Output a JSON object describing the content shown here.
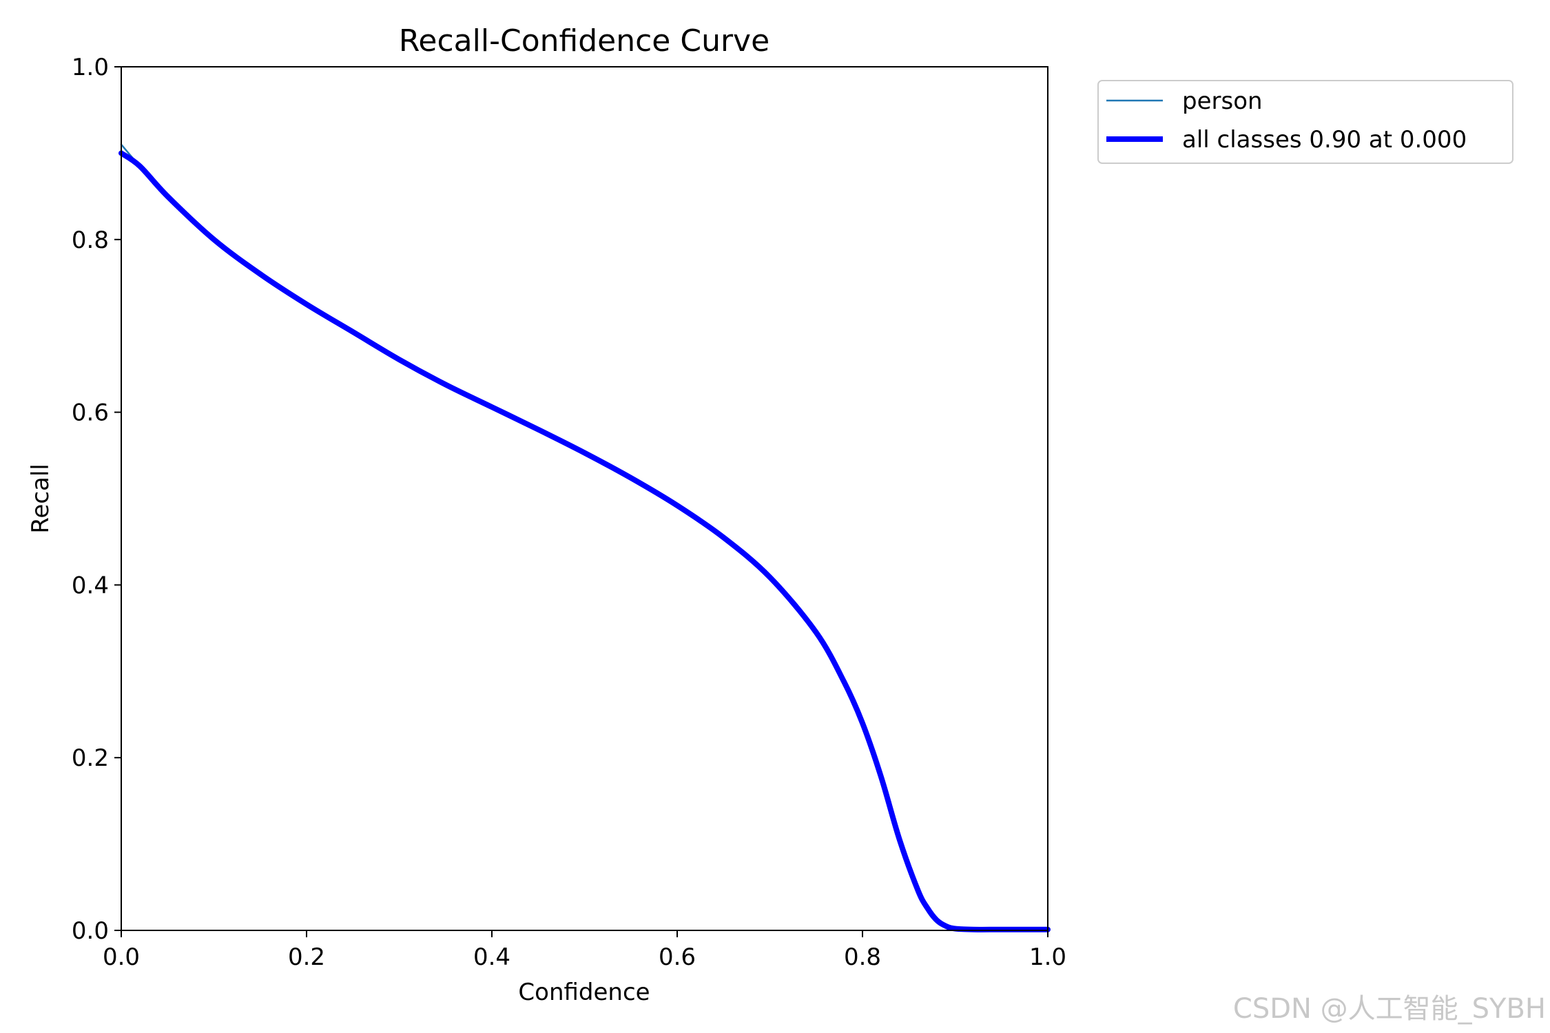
{
  "chart_data": {
    "type": "line",
    "title": "Recall-Confidence Curve",
    "xlabel": "Confidence",
    "ylabel": "Recall",
    "xlim": [
      0.0,
      1.0
    ],
    "ylim": [
      0.0,
      1.0
    ],
    "xticks": [
      "0.0",
      "0.2",
      "0.4",
      "0.6",
      "0.8",
      "1.0"
    ],
    "yticks": [
      "0.0",
      "0.2",
      "0.4",
      "0.6",
      "0.8",
      "1.0"
    ],
    "grid": false,
    "legend_position": "outside-top-right",
    "series": [
      {
        "name": "person",
        "color": "#1f77b4",
        "x": [
          0.0,
          0.02,
          0.05,
          0.1,
          0.15,
          0.2,
          0.25,
          0.3,
          0.35,
          0.4,
          0.45,
          0.5,
          0.55,
          0.6,
          0.65,
          0.7,
          0.75,
          0.78,
          0.8,
          0.82,
          0.84,
          0.86,
          0.87,
          0.88,
          0.89,
          0.9,
          0.92,
          0.95,
          1.0
        ],
        "y": [
          0.91,
          0.885,
          0.85,
          0.8,
          0.76,
          0.725,
          0.693,
          0.661,
          0.632,
          0.606,
          0.58,
          0.553,
          0.524,
          0.492,
          0.455,
          0.409,
          0.345,
          0.288,
          0.24,
          0.178,
          0.105,
          0.043,
          0.022,
          0.009,
          0.003,
          0.001,
          0.001,
          0.001,
          0.001
        ]
      },
      {
        "name": "all classes 0.90 at 0.000",
        "color": "#0000ff",
        "x": [
          0.0,
          0.02,
          0.05,
          0.1,
          0.15,
          0.2,
          0.25,
          0.3,
          0.35,
          0.4,
          0.45,
          0.5,
          0.55,
          0.6,
          0.65,
          0.7,
          0.75,
          0.78,
          0.8,
          0.82,
          0.84,
          0.86,
          0.87,
          0.88,
          0.89,
          0.9,
          0.92,
          0.95,
          1.0
        ],
        "y": [
          0.9,
          0.885,
          0.85,
          0.8,
          0.76,
          0.725,
          0.693,
          0.661,
          0.632,
          0.606,
          0.58,
          0.553,
          0.524,
          0.492,
          0.455,
          0.409,
          0.345,
          0.288,
          0.24,
          0.178,
          0.105,
          0.046,
          0.026,
          0.012,
          0.005,
          0.002,
          0.001,
          0.001,
          0.001
        ]
      }
    ]
  },
  "watermark": "CSDN @人工智能_SYBH"
}
